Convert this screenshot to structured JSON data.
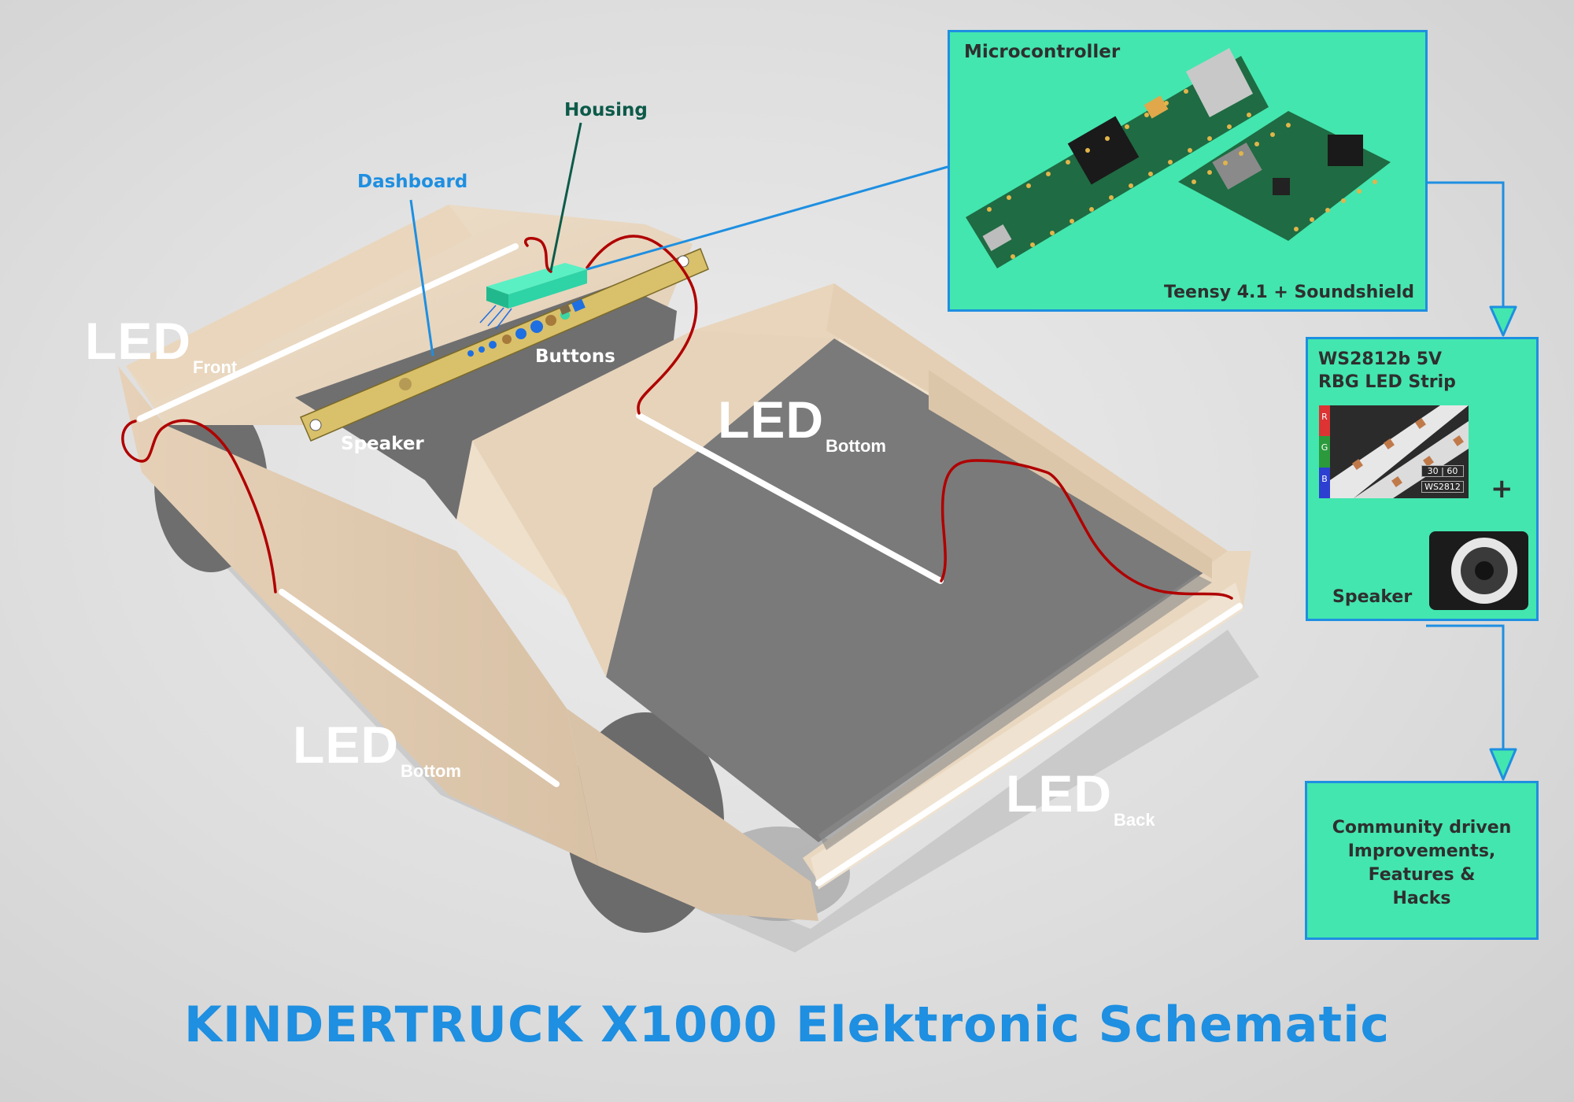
{
  "title": "KINDERTRUCK X1000 Elektronic Schematic",
  "colors": {
    "accent": "#1e8fe1",
    "panel": "#43e6ae",
    "wire": "#b00000",
    "wood": "#ead8c2",
    "housing": "#2ed3a6"
  },
  "leds": {
    "front": {
      "main": "LED",
      "sub": "Front"
    },
    "bottom_top": {
      "main": "LED",
      "sub": "Bottom"
    },
    "bottom_left": {
      "main": "LED",
      "sub": "Bottom"
    },
    "back": {
      "main": "LED",
      "sub": "Back"
    }
  },
  "labels": {
    "housing": "Housing",
    "dashboard": "Dashboard",
    "buttons": "Buttons",
    "speaker": "Speaker"
  },
  "microcontroller": {
    "title": "Microcontroller",
    "caption": "Teensy 4.1 + Soundshield"
  },
  "led_strip": {
    "title_line1": "WS2812b 5V",
    "title_line2": "RBG LED Strip",
    "rgb": [
      "R",
      "G",
      "B"
    ],
    "tag_density": "30 | 60",
    "tag_model": "WS2812",
    "plus": "+",
    "speaker_label": "Speaker"
  },
  "community": {
    "lines": [
      "Community driven",
      "Improvements,",
      "Features &",
      "Hacks"
    ]
  }
}
